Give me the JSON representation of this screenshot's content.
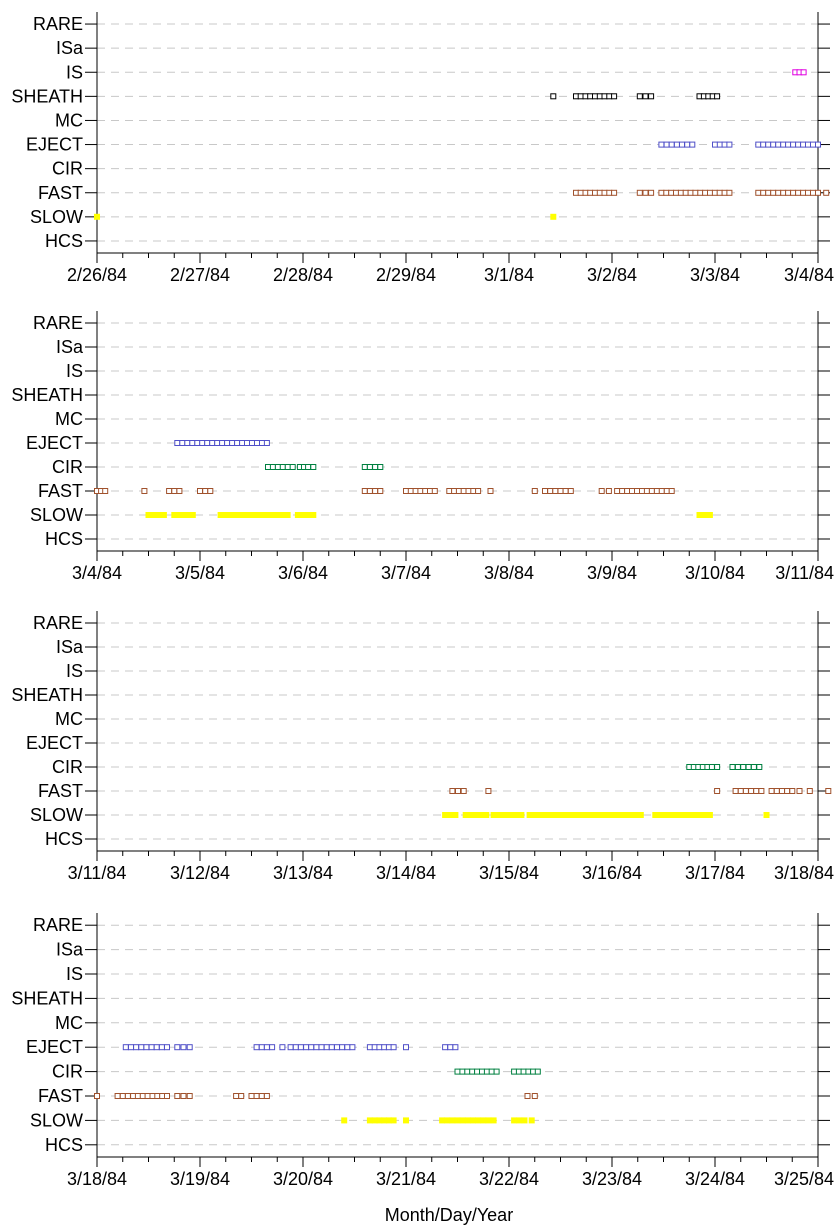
{
  "chart_data": {
    "type": "scatter",
    "xlabel": "Month/Day/Year",
    "categories": [
      "RARE",
      "ISa",
      "IS",
      "SHEATH",
      "MC",
      "EJECT",
      "CIR",
      "FAST",
      "SLOW",
      "HCS"
    ],
    "grid": true,
    "colors": {
      "SLOW": "#ffff00",
      "FAST": "#a0522d",
      "CIR": "#008040",
      "EJECT": "#5050c8",
      "SHEATH": "#000000",
      "IS": "#e000e0",
      "grid": "#c8c8c8"
    },
    "panels": [
      {
        "xlim": [
          "2/26/84",
          "3/4/84"
        ],
        "xticks": [
          "2/26/84",
          "2/27/84",
          "2/28/84",
          "2/29/84",
          "3/1/84",
          "3/2/84",
          "3/3/84",
          "3/4/84"
        ],
        "series": [
          {
            "name": "IS",
            "runs": [
              [
                6.78,
                6.86
              ]
            ]
          },
          {
            "name": "SHEATH",
            "runs": [
              [
                4.43,
                4.43
              ],
              [
                4.65,
                5.02
              ],
              [
                5.27,
                5.38
              ],
              [
                5.85,
                6.02
              ]
            ]
          },
          {
            "name": "EJECT",
            "runs": [
              [
                5.48,
                5.78
              ],
              [
                6.0,
                6.14
              ],
              [
                6.42,
                7.0
              ]
            ]
          },
          {
            "name": "FAST",
            "runs": [
              [
                4.65,
                5.02
              ],
              [
                5.27,
                5.38
              ],
              [
                5.48,
                6.14
              ],
              [
                6.42,
                7.0
              ],
              [
                7.08,
                7.08
              ]
            ]
          },
          {
            "name": "SLOW",
            "runs": [
              [
                0.0,
                0.0
              ],
              [
                4.43,
                4.43
              ]
            ]
          }
        ]
      },
      {
        "xlim": [
          "3/4/84",
          "3/11/84"
        ],
        "xticks": [
          "3/4/84",
          "3/5/84",
          "3/6/84",
          "3/7/84",
          "3/8/84",
          "3/9/84",
          "3/10/84",
          "3/11/84"
        ],
        "series": [
          {
            "name": "EJECT",
            "runs": [
              [
                0.78,
                1.65
              ]
            ]
          },
          {
            "name": "CIR",
            "runs": [
              [
                1.66,
                1.9
              ],
              [
                1.97,
                2.05
              ],
              [
                2.1,
                2.1
              ],
              [
                2.6,
                2.75
              ]
            ]
          },
          {
            "name": "FAST",
            "runs": [
              [
                0.0,
                0.08
              ],
              [
                0.46,
                0.46
              ],
              [
                0.7,
                0.8
              ],
              [
                1.0,
                1.1
              ],
              [
                2.6,
                2.75
              ],
              [
                3.0,
                3.28
              ],
              [
                3.42,
                3.7
              ],
              [
                3.82,
                3.82
              ],
              [
                4.25,
                4.25
              ],
              [
                4.35,
                4.6
              ],
              [
                4.9,
                4.97
              ],
              [
                5.05,
                5.58
              ]
            ]
          },
          {
            "name": "SLOW",
            "runs": [
              [
                0.5,
                0.65
              ],
              [
                0.75,
                0.93
              ],
              [
                1.2,
                1.85
              ],
              [
                1.95,
                2.1
              ],
              [
                5.85,
                5.95
              ]
            ]
          }
        ]
      },
      {
        "xlim": [
          "3/11/84",
          "3/18/84"
        ],
        "xticks": [
          "3/11/84",
          "3/12/84",
          "3/13/84",
          "3/14/84",
          "3/15/84",
          "3/16/84",
          "3/17/84",
          "3/18/84"
        ],
        "series": [
          {
            "name": "CIR",
            "runs": [
              [
                5.75,
                5.97
              ],
              [
                6.02,
                6.02
              ],
              [
                6.17,
                6.43
              ]
            ]
          },
          {
            "name": "FAST",
            "runs": [
              [
                3.45,
                3.56
              ],
              [
                3.8,
                3.8
              ],
              [
                6.02,
                6.02
              ],
              [
                6.2,
                6.45
              ],
              [
                6.55,
                6.7
              ],
              [
                6.75,
                6.82
              ],
              [
                6.92,
                6.92
              ],
              [
                7.1,
                7.1
              ]
            ]
          },
          {
            "name": "SLOW",
            "runs": [
              [
                3.38,
                3.48
              ],
              [
                3.58,
                3.78
              ],
              [
                3.85,
                4.12
              ],
              [
                4.2,
                5.28
              ],
              [
                5.42,
                5.75
              ],
              [
                5.8,
                5.95
              ],
              [
                6.5,
                6.52
              ]
            ]
          }
        ]
      },
      {
        "xlim": [
          "3/18/84",
          "3/25/84"
        ],
        "xticks": [
          "3/18/84",
          "3/19/84",
          "3/20/84",
          "3/21/84",
          "3/22/84",
          "3/23/84",
          "3/24/84",
          "3/25/84"
        ],
        "series": [
          {
            "name": "EJECT",
            "runs": [
              [
                0.28,
                0.68
              ],
              [
                0.78,
                0.9
              ],
              [
                1.55,
                1.7
              ],
              [
                1.8,
                1.8
              ],
              [
                1.88,
                2.48
              ],
              [
                2.65,
                2.88
              ],
              [
                3.0,
                3.0
              ],
              [
                3.38,
                3.48
              ]
            ]
          },
          {
            "name": "CIR",
            "runs": [
              [
                3.5,
                3.88
              ],
              [
                4.05,
                4.28
              ]
            ]
          },
          {
            "name": "FAST",
            "runs": [
              [
                0.0,
                0.0
              ],
              [
                0.2,
                0.3
              ],
              [
                0.35,
                0.68
              ],
              [
                0.78,
                0.9
              ],
              [
                1.35,
                1.4
              ],
              [
                1.5,
                1.65
              ],
              [
                4.18,
                4.18
              ],
              [
                4.25,
                4.25
              ]
            ]
          },
          {
            "name": "SLOW",
            "runs": [
              [
                2.4,
                2.42
              ],
              [
                2.65,
                2.88
              ],
              [
                3.0,
                3.0
              ],
              [
                3.35,
                3.85
              ],
              [
                4.05,
                4.15
              ],
              [
                4.22,
                4.22
              ]
            ]
          }
        ]
      }
    ]
  }
}
